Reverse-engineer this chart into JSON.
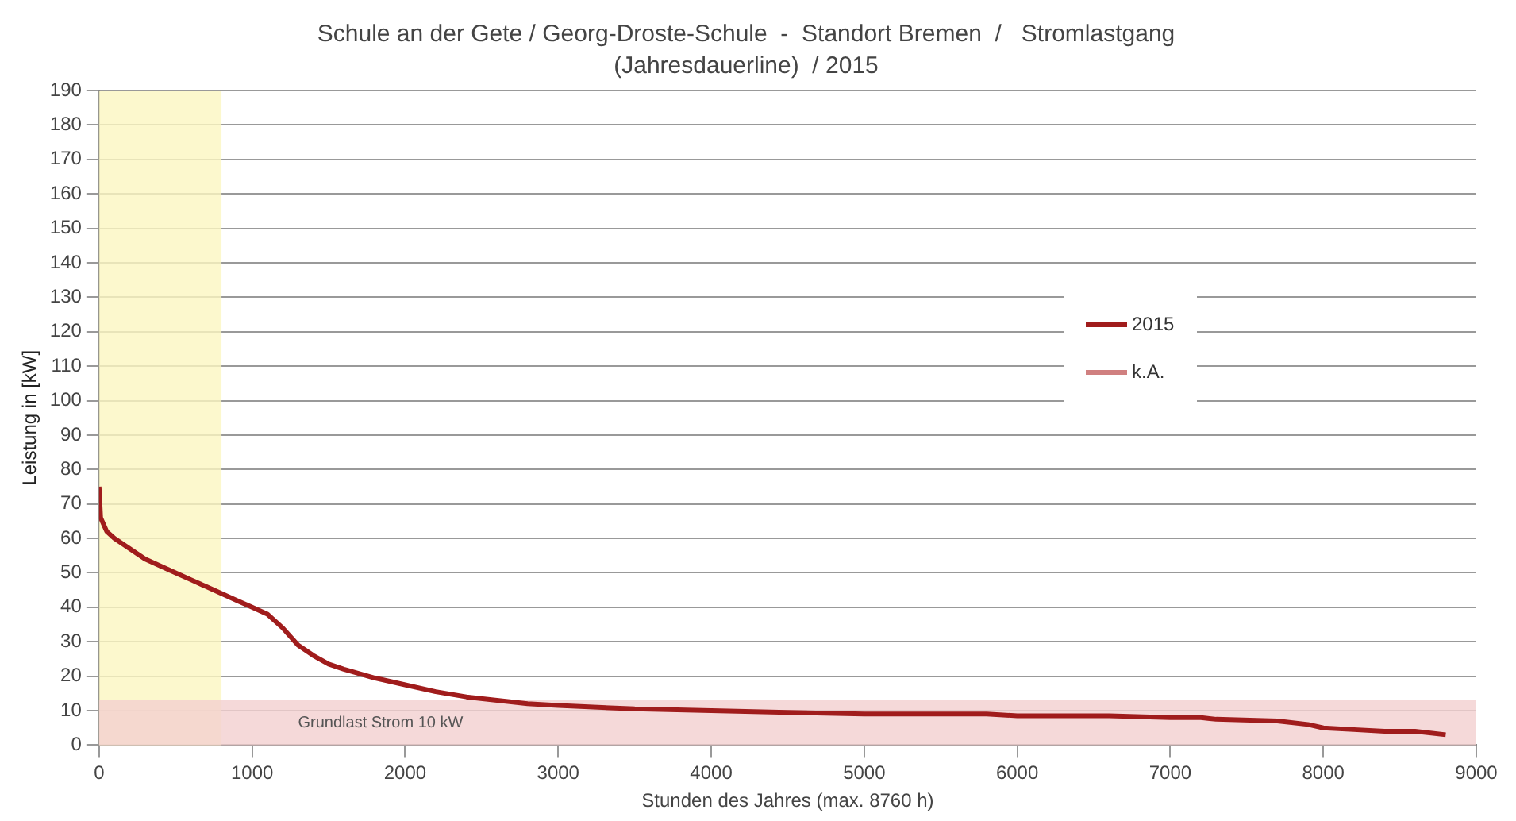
{
  "chart_data": {
    "type": "line",
    "title": "Schule an der Gete / Georg-Droste-Schule  -  Standort Bremen  /   Stromlastgang",
    "subtitle": "(Jahresdauerline)  / 2015",
    "xlabel": "Stunden des Jahres (max. 8760 h)",
    "ylabel": "Leistung in [kW]",
    "x": [
      0,
      10,
      50,
      100,
      200,
      300,
      400,
      500,
      600,
      700,
      800,
      900,
      1000,
      1100,
      1200,
      1300,
      1400,
      1500,
      1600,
      1800,
      2000,
      2200,
      2400,
      2600,
      2800,
      3000,
      3500,
      4000,
      4500,
      5000,
      5800,
      6000,
      6600,
      7000,
      7200,
      7300,
      7700,
      7900,
      8000,
      8200,
      8400,
      8600,
      8800
    ],
    "series": [
      {
        "name": "2015",
        "color": "#a01c1c",
        "values": [
          75,
          66,
          62,
          60,
          57,
          54,
          52,
          50,
          48,
          46,
          44,
          42,
          40,
          38,
          34,
          29,
          26,
          23.5,
          22,
          19.5,
          17.5,
          15.5,
          14,
          13,
          12,
          11.5,
          10.5,
          10,
          9.5,
          9,
          9,
          8.5,
          8.5,
          8,
          8,
          7.5,
          7,
          6,
          5,
          4.5,
          4,
          4,
          3
        ]
      },
      {
        "name": "k.A.",
        "color": "#d08080",
        "values": [
          null,
          null,
          null,
          null,
          null,
          null,
          null,
          null,
          null,
          null,
          null,
          null,
          null,
          null,
          null,
          null,
          null,
          null,
          null,
          null,
          null,
          null,
          null,
          null,
          null,
          null,
          null,
          null,
          null,
          null,
          null,
          null,
          null,
          null,
          null,
          null,
          null,
          null,
          null,
          null,
          null,
          null,
          null
        ]
      }
    ],
    "xlim": [
      0,
      9000
    ],
    "xticks": [
      0,
      1000,
      2000,
      3000,
      4000,
      5000,
      6000,
      7000,
      8000,
      9000
    ],
    "ylim": [
      0,
      190
    ],
    "yticks": [
      0,
      10,
      20,
      30,
      40,
      50,
      60,
      70,
      80,
      90,
      100,
      110,
      120,
      130,
      140,
      150,
      160,
      170,
      180,
      190
    ],
    "bands": [
      {
        "axis": "x",
        "from": 0,
        "to": 800,
        "color": "#fbf6c0"
      },
      {
        "axis": "y",
        "from": 0,
        "to": 13,
        "label": "Grundlast Strom 10 kW",
        "color": "#f2d0d0"
      }
    ],
    "grid": "y",
    "legend": "right",
    "marker": "none",
    "line_style": "solid"
  }
}
